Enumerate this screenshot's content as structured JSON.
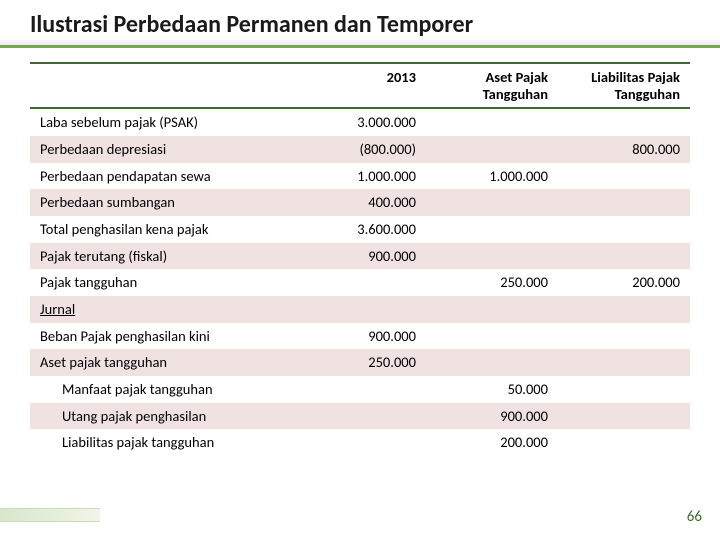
{
  "title": "Ilustrasi Perbedaan Permanen dan Temporer",
  "headers": {
    "desc": "",
    "c2013": "2013",
    "aset": "Aset Pajak Tangguhan",
    "liab": "Liabilitas Pajak Tangguhan"
  },
  "rows": [
    {
      "desc": "Laba sebelum pajak (PSAK)",
      "c2013": "3.000.000",
      "aset": "",
      "liab": "",
      "cls": "even"
    },
    {
      "desc": "Perbedaan depresiasi",
      "c2013": "(800.000)",
      "aset": "",
      "liab": "800.000",
      "cls": "odd"
    },
    {
      "desc": "Perbedaan pendapatan sewa",
      "c2013": "1.000.000",
      "aset": "1.000.000",
      "liab": "",
      "cls": "even"
    },
    {
      "desc": "Perbedaan sumbangan",
      "c2013": "400.000",
      "aset": "",
      "liab": "",
      "cls": "odd"
    },
    {
      "desc": "Total penghasilan kena pajak",
      "c2013": "3.600.000",
      "aset": "",
      "liab": "",
      "cls": "even"
    },
    {
      "desc": "Pajak terutang (fiskal)",
      "c2013": "900.000",
      "aset": "",
      "liab": "",
      "cls": "odd"
    },
    {
      "desc": "Pajak tangguhan",
      "c2013": "",
      "aset": "250.000",
      "liab": "200.000",
      "cls": "even"
    },
    {
      "desc": "Jurnal",
      "c2013": "",
      "aset": "",
      "liab": "",
      "cls": "odd",
      "underline": true
    },
    {
      "desc": "Beban Pajak penghasilan kini",
      "c2013": "900.000",
      "aset": "",
      "liab": "",
      "cls": "even"
    },
    {
      "desc": "Aset pajak tangguhan",
      "c2013": "250.000",
      "aset": "",
      "liab": "",
      "cls": "odd"
    },
    {
      "desc": "Manfaat pajak tangguhan",
      "c2013": "",
      "aset": "50.000",
      "liab": "",
      "cls": "even",
      "indent": true
    },
    {
      "desc": "Utang pajak penghasilan",
      "c2013": "",
      "aset": "900.000",
      "liab": "",
      "cls": "odd",
      "indent": true
    },
    {
      "desc": "Liabilitas pajak tangguhan",
      "c2013": "",
      "aset": "200.000",
      "liab": "",
      "cls": "even",
      "indent": true
    }
  ],
  "pageNumber": "66"
}
